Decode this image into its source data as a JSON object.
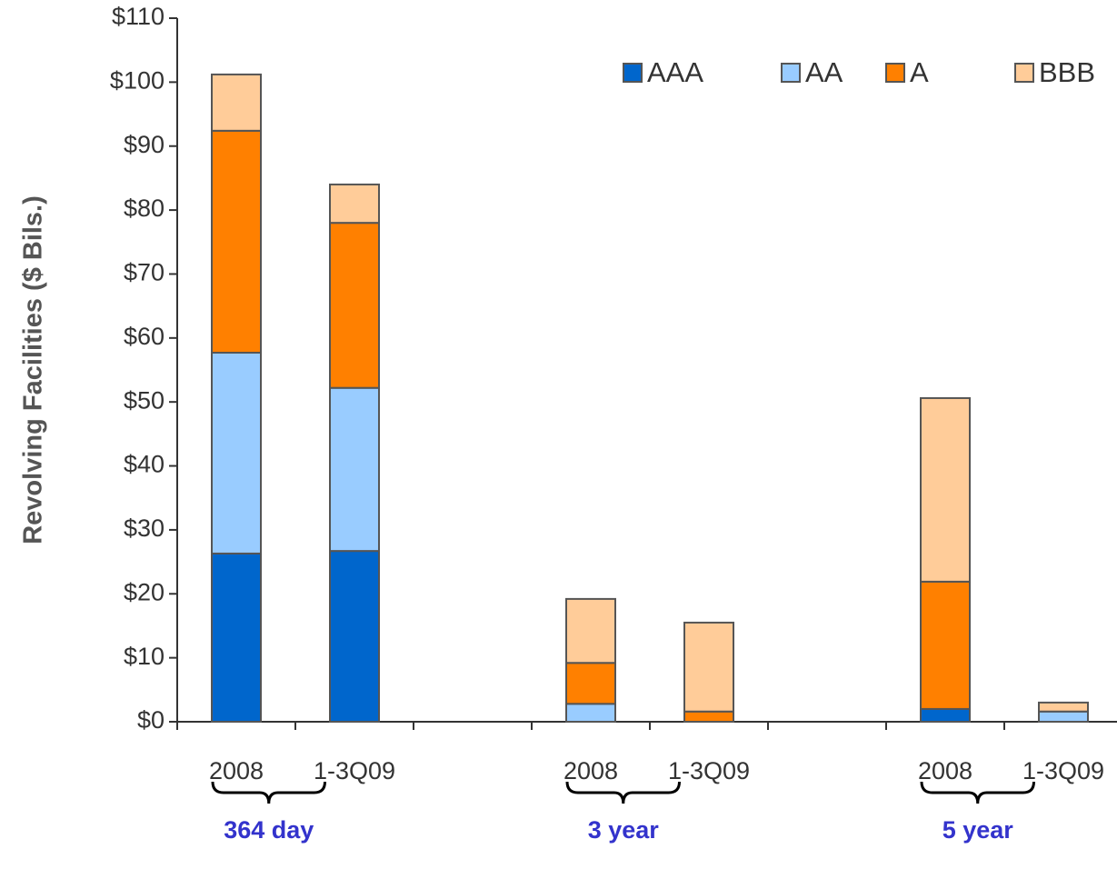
{
  "chart_data": {
    "type": "stacked_bar",
    "y_label": "Revolving Facilities ($ Bils.)",
    "categories": [
      "2008",
      "1-3Q09",
      null,
      "2008",
      "1-3Q09",
      null,
      "2008",
      "1-3Q09"
    ],
    "group_labels": [
      "364 day",
      "3 year",
      "5 year"
    ],
    "series": [
      {
        "name": "AAA",
        "color": "#0066cc",
        "values": [
          26.3,
          26.7,
          null,
          0,
          0,
          null,
          2.0,
          0
        ]
      },
      {
        "name": "AA",
        "color": "#99ccff",
        "values": [
          31.4,
          25.5,
          null,
          2.8,
          0,
          null,
          0,
          1.6
        ]
      },
      {
        "name": "A",
        "color": "#ff8000",
        "values": [
          34.7,
          25.8,
          null,
          6.4,
          1.6,
          null,
          19.9,
          0
        ]
      },
      {
        "name": "BBB",
        "color": "#ffcc99",
        "values": [
          8.8,
          6.0,
          null,
          10.0,
          13.9,
          null,
          28.7,
          1.4
        ]
      }
    ],
    "ylim": [
      0,
      110
    ],
    "yticks": [
      {
        "value": 0,
        "label": "$0"
      },
      {
        "value": 10,
        "label": "$10"
      },
      {
        "value": 20,
        "label": "$20"
      },
      {
        "value": 30,
        "label": "$30"
      },
      {
        "value": 40,
        "label": "$40"
      },
      {
        "value": 50,
        "label": "$50"
      },
      {
        "value": 60,
        "label": "$60"
      },
      {
        "value": 70,
        "label": "$70"
      },
      {
        "value": 80,
        "label": "$80"
      },
      {
        "value": 90,
        "label": "$90"
      },
      {
        "value": 100,
        "label": "$100"
      },
      {
        "value": 110,
        "label": "$110"
      }
    ],
    "legend": "top-right",
    "grid": false
  }
}
